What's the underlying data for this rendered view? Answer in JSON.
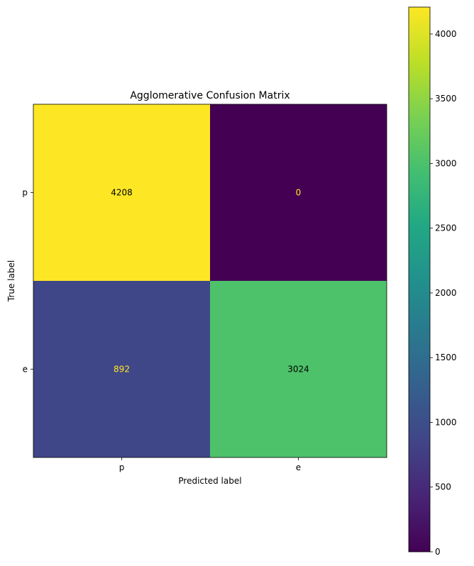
{
  "chart_data": {
    "type": "heatmap",
    "title": "Agglomerative Confusion Matrix",
    "xlabel": "Predicted label",
    "ylabel": "True label",
    "x_categories": [
      "p",
      "e"
    ],
    "y_categories": [
      "p",
      "e"
    ],
    "matrix": [
      [
        4208,
        0
      ],
      [
        892,
        3024
      ]
    ],
    "colormap": "viridis",
    "colorbar": {
      "min": 0,
      "max": 4208,
      "ticks": [
        0,
        500,
        1000,
        1500,
        2000,
        2500,
        3000,
        3500,
        4000
      ]
    },
    "colors": {
      "yellow": "#fde725",
      "purple": "#440154",
      "blue": "#3f4889",
      "green": "#48c16e"
    }
  }
}
